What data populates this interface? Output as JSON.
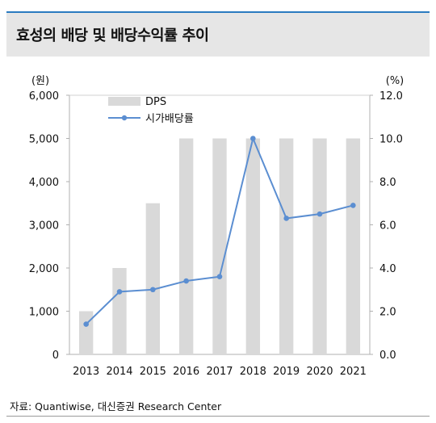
{
  "header": {
    "title": "효성의 배당 및 배당수익률 추이"
  },
  "chart_data": {
    "type": "bar",
    "categories": [
      "2013",
      "2014",
      "2015",
      "2016",
      "2017",
      "2018",
      "2019",
      "2020",
      "2021"
    ],
    "series": [
      {
        "name": "DPS",
        "type": "bar",
        "axis": "left",
        "color": "#d9d9d9",
        "values": [
          1000,
          2000,
          3500,
          5000,
          5000,
          5000,
          5000,
          5000,
          5000
        ]
      },
      {
        "name": "시가배당률",
        "type": "line",
        "axis": "right",
        "color": "#5b8ed1",
        "values": [
          1.4,
          2.9,
          3.0,
          3.4,
          3.6,
          10.0,
          6.3,
          6.5,
          6.9
        ]
      }
    ],
    "y_left": {
      "unit": "(원)",
      "range": [
        0,
        6000
      ],
      "ticks": [
        "0",
        "1,000",
        "2,000",
        "3,000",
        "4,000",
        "5,000",
        "6,000"
      ]
    },
    "y_right": {
      "unit": "(%)",
      "range": [
        0,
        12
      ],
      "ticks": [
        "0.0",
        "2.0",
        "4.0",
        "6.0",
        "8.0",
        "10.0",
        "12.0"
      ]
    },
    "legend": {
      "position": "top-left",
      "items": [
        "DPS",
        "시가배당률"
      ]
    },
    "grid": false
  },
  "footer": {
    "source": "자료: Quantiwise, 대신증권 Research Center"
  }
}
